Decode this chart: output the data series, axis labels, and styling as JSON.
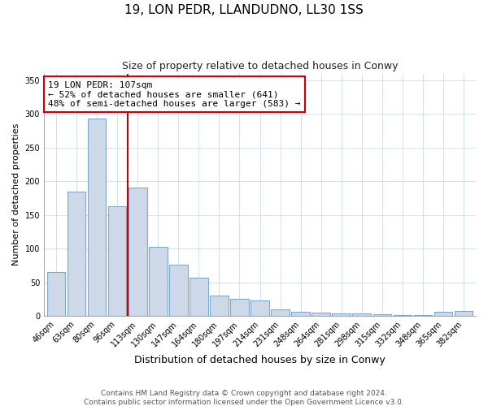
{
  "title": "19, LON PEDR, LLANDUDNO, LL30 1SS",
  "subtitle": "Size of property relative to detached houses in Conwy",
  "xlabel": "Distribution of detached houses by size in Conwy",
  "ylabel": "Number of detached properties",
  "categories": [
    "46sqm",
    "63sqm",
    "80sqm",
    "96sqm",
    "113sqm",
    "130sqm",
    "147sqm",
    "164sqm",
    "180sqm",
    "197sqm",
    "214sqm",
    "231sqm",
    "248sqm",
    "264sqm",
    "281sqm",
    "298sqm",
    "315sqm",
    "332sqm",
    "348sqm",
    "365sqm",
    "382sqm"
  ],
  "values": [
    65,
    185,
    293,
    163,
    190,
    103,
    76,
    57,
    30,
    25,
    23,
    10,
    6,
    5,
    4,
    3,
    2,
    1,
    1,
    6,
    7
  ],
  "bar_color": "#cdd9e8",
  "bar_edge_color": "#7fa8cc",
  "vline_x": 3.5,
  "vline_color": "#cc0000",
  "annotation_text": "19 LON PEDR: 107sqm\n← 52% of detached houses are smaller (641)\n48% of semi-detached houses are larger (583) →",
  "annotation_box_edge": "#cc0000",
  "annotation_box_face": "white",
  "ylim": [
    0,
    360
  ],
  "yticks": [
    0,
    50,
    100,
    150,
    200,
    250,
    300,
    350
  ],
  "footer": "Contains HM Land Registry data © Crown copyright and database right 2024.\nContains public sector information licensed under the Open Government Licence v3.0.",
  "title_fontsize": 11,
  "subtitle_fontsize": 9,
  "xlabel_fontsize": 9,
  "ylabel_fontsize": 8,
  "tick_fontsize": 7,
  "annot_fontsize": 8,
  "footer_fontsize": 6.5
}
